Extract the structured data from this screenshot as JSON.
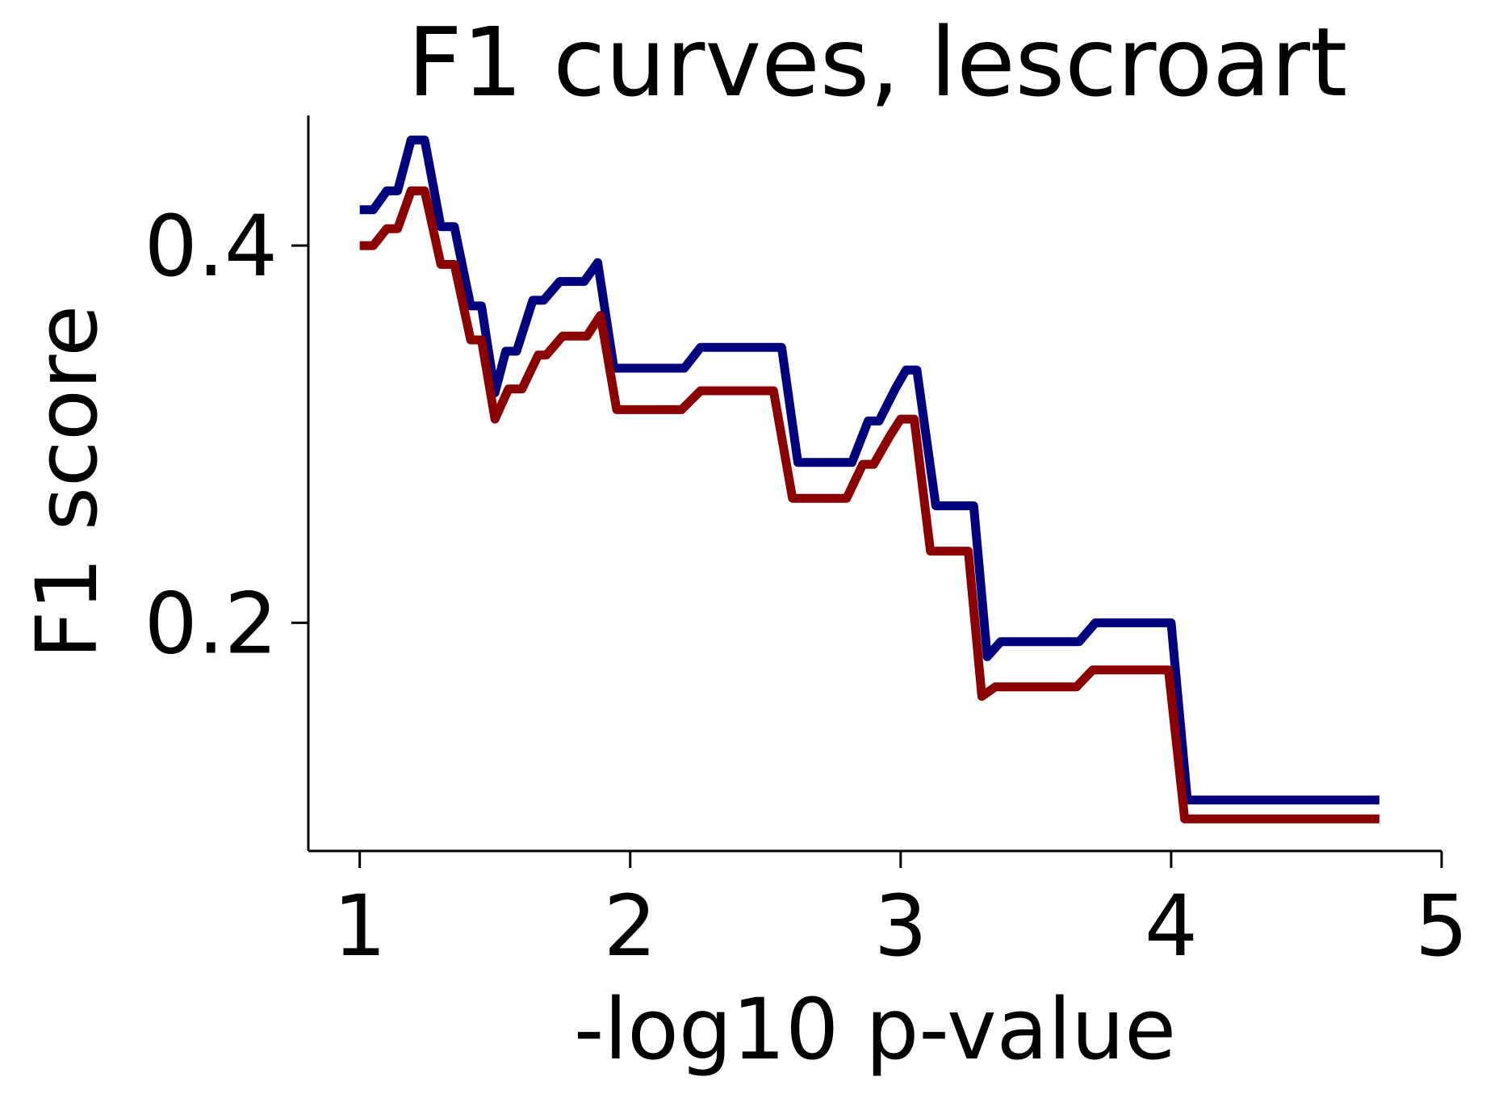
{
  "chart_data": {
    "type": "line",
    "title": "F1 curves, lescroart",
    "xlabel": "-log10 p-value",
    "ylabel": "F1 score",
    "xlim": [
      0.81,
      5.0
    ],
    "ylim": [
      0.079,
      0.469
    ],
    "xticks": [
      1,
      2,
      3,
      4,
      5
    ],
    "yticks": [
      0.2,
      0.4
    ],
    "xtick_labels": [
      "1",
      "2",
      "3",
      "4",
      "5"
    ],
    "ytick_labels": [
      "0.2",
      "0.4"
    ],
    "grid": false,
    "colors": {
      "series_blue": "#00007f",
      "series_red": "#8b0000"
    },
    "series": [
      {
        "color": "#00007f",
        "points": [
          [
            1.0,
            0.419
          ],
          [
            1.05,
            0.419
          ],
          [
            1.1,
            0.429
          ],
          [
            1.14,
            0.429
          ],
          [
            1.19,
            0.456
          ],
          [
            1.24,
            0.456
          ],
          [
            1.3,
            0.41
          ],
          [
            1.35,
            0.41
          ],
          [
            1.41,
            0.368
          ],
          [
            1.45,
            0.368
          ],
          [
            1.5,
            0.322
          ],
          [
            1.54,
            0.344
          ],
          [
            1.58,
            0.344
          ],
          [
            1.64,
            0.371
          ],
          [
            1.68,
            0.371
          ],
          [
            1.74,
            0.381
          ],
          [
            1.83,
            0.381
          ],
          [
            1.88,
            0.391
          ],
          [
            1.94,
            0.335
          ],
          [
            2.2,
            0.335
          ],
          [
            2.26,
            0.346
          ],
          [
            2.56,
            0.346
          ],
          [
            2.62,
            0.285
          ],
          [
            2.82,
            0.285
          ],
          [
            2.88,
            0.307
          ],
          [
            2.92,
            0.307
          ],
          [
            2.98,
            0.324
          ],
          [
            3.02,
            0.334
          ],
          [
            3.06,
            0.334
          ],
          [
            3.13,
            0.262
          ],
          [
            3.27,
            0.262
          ],
          [
            3.32,
            0.182
          ],
          [
            3.37,
            0.19
          ],
          [
            3.66,
            0.19
          ],
          [
            3.72,
            0.2
          ],
          [
            4.0,
            0.2
          ],
          [
            4.06,
            0.106
          ],
          [
            4.77,
            0.106
          ]
        ]
      },
      {
        "color": "#8b0000",
        "points": [
          [
            1.0,
            0.4
          ],
          [
            1.05,
            0.4
          ],
          [
            1.1,
            0.409
          ],
          [
            1.14,
            0.409
          ],
          [
            1.19,
            0.429
          ],
          [
            1.24,
            0.429
          ],
          [
            1.3,
            0.39
          ],
          [
            1.35,
            0.39
          ],
          [
            1.41,
            0.35
          ],
          [
            1.45,
            0.35
          ],
          [
            1.5,
            0.308
          ],
          [
            1.55,
            0.324
          ],
          [
            1.6,
            0.324
          ],
          [
            1.66,
            0.342
          ],
          [
            1.69,
            0.342
          ],
          [
            1.75,
            0.352
          ],
          [
            1.84,
            0.352
          ],
          [
            1.89,
            0.363
          ],
          [
            1.95,
            0.313
          ],
          [
            2.19,
            0.313
          ],
          [
            2.26,
            0.323
          ],
          [
            2.53,
            0.323
          ],
          [
            2.6,
            0.266
          ],
          [
            2.8,
            0.266
          ],
          [
            2.86,
            0.284
          ],
          [
            2.9,
            0.284
          ],
          [
            2.96,
            0.299
          ],
          [
            3.0,
            0.308
          ],
          [
            3.05,
            0.308
          ],
          [
            3.11,
            0.238
          ],
          [
            3.25,
            0.238
          ],
          [
            3.3,
            0.161
          ],
          [
            3.35,
            0.166
          ],
          [
            3.65,
            0.166
          ],
          [
            3.71,
            0.175
          ],
          [
            3.99,
            0.175
          ],
          [
            4.05,
            0.096
          ],
          [
            4.77,
            0.096
          ]
        ]
      }
    ]
  }
}
